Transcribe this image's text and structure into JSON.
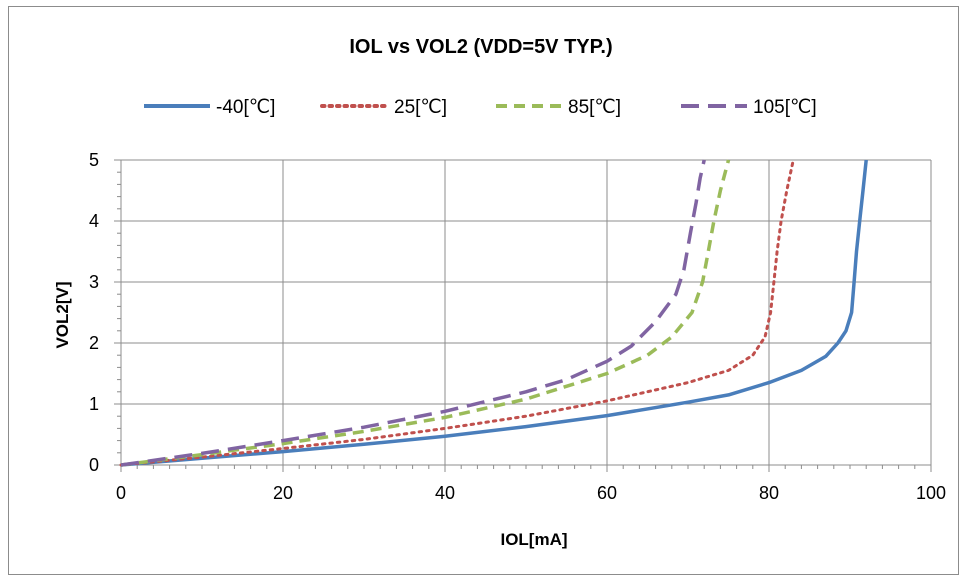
{
  "chart_data": {
    "type": "line",
    "title": "IOL vs VOL2 (VDD=5V TYP.)",
    "xlabel": "IOL[mA]",
    "ylabel": "VOL2[V]",
    "xlim": [
      0,
      100
    ],
    "ylim": [
      0,
      5
    ],
    "xticks": [
      "0",
      "20",
      "40",
      "60",
      "80",
      "100"
    ],
    "yticks": [
      "0",
      "1",
      "2",
      "3",
      "4",
      "5"
    ],
    "grid": true,
    "legend_position": "top",
    "series": [
      {
        "name": "-40[℃]",
        "color": "#4a7ebb",
        "style": "solid",
        "points": [
          [
            0,
            0
          ],
          [
            10,
            0.11
          ],
          [
            20,
            0.22
          ],
          [
            30,
            0.34
          ],
          [
            40,
            0.47
          ],
          [
            50,
            0.63
          ],
          [
            60,
            0.81
          ],
          [
            70,
            1.03
          ],
          [
            75,
            1.15
          ],
          [
            80,
            1.35
          ],
          [
            84,
            1.55
          ],
          [
            87,
            1.78
          ],
          [
            88.5,
            2.0
          ],
          [
            89.5,
            2.2
          ],
          [
            90.2,
            2.5
          ],
          [
            90.5,
            3.0
          ],
          [
            90.8,
            3.5
          ],
          [
            91.2,
            4.0
          ],
          [
            91.6,
            4.5
          ],
          [
            92,
            5.0
          ]
        ]
      },
      {
        "name": "25[℃]",
        "color": "#c0504d",
        "style": "dotted",
        "points": [
          [
            0,
            0
          ],
          [
            10,
            0.13
          ],
          [
            20,
            0.27
          ],
          [
            30,
            0.42
          ],
          [
            40,
            0.6
          ],
          [
            50,
            0.8
          ],
          [
            60,
            1.05
          ],
          [
            70,
            1.35
          ],
          [
            75,
            1.55
          ],
          [
            78,
            1.8
          ],
          [
            79.5,
            2.1
          ],
          [
            80.2,
            2.5
          ],
          [
            80.6,
            3.0
          ],
          [
            81,
            3.5
          ],
          [
            81.5,
            4.0
          ],
          [
            82.2,
            4.5
          ],
          [
            83,
            5.0
          ]
        ]
      },
      {
        "name": "85[℃]",
        "color": "#9bbb59",
        "style": "dashed",
        "points": [
          [
            0,
            0
          ],
          [
            10,
            0.17
          ],
          [
            20,
            0.35
          ],
          [
            30,
            0.55
          ],
          [
            40,
            0.78
          ],
          [
            50,
            1.08
          ],
          [
            60,
            1.5
          ],
          [
            65,
            1.8
          ],
          [
            68,
            2.1
          ],
          [
            70.5,
            2.5
          ],
          [
            71.8,
            3.0
          ],
          [
            72.5,
            3.5
          ],
          [
            73.2,
            4.0
          ],
          [
            74,
            4.5
          ],
          [
            75,
            5.0
          ]
        ]
      },
      {
        "name": "105[℃]",
        "color": "#8064a2",
        "style": "longdash",
        "points": [
          [
            0,
            0
          ],
          [
            10,
            0.19
          ],
          [
            20,
            0.4
          ],
          [
            30,
            0.62
          ],
          [
            40,
            0.88
          ],
          [
            50,
            1.2
          ],
          [
            55,
            1.4
          ],
          [
            60,
            1.7
          ],
          [
            63,
            1.95
          ],
          [
            66,
            2.35
          ],
          [
            68.5,
            2.8
          ],
          [
            69.5,
            3.2
          ],
          [
            70.3,
            3.8
          ],
          [
            71,
            4.3
          ],
          [
            71.5,
            4.7
          ],
          [
            72,
            5.0
          ]
        ]
      }
    ]
  }
}
